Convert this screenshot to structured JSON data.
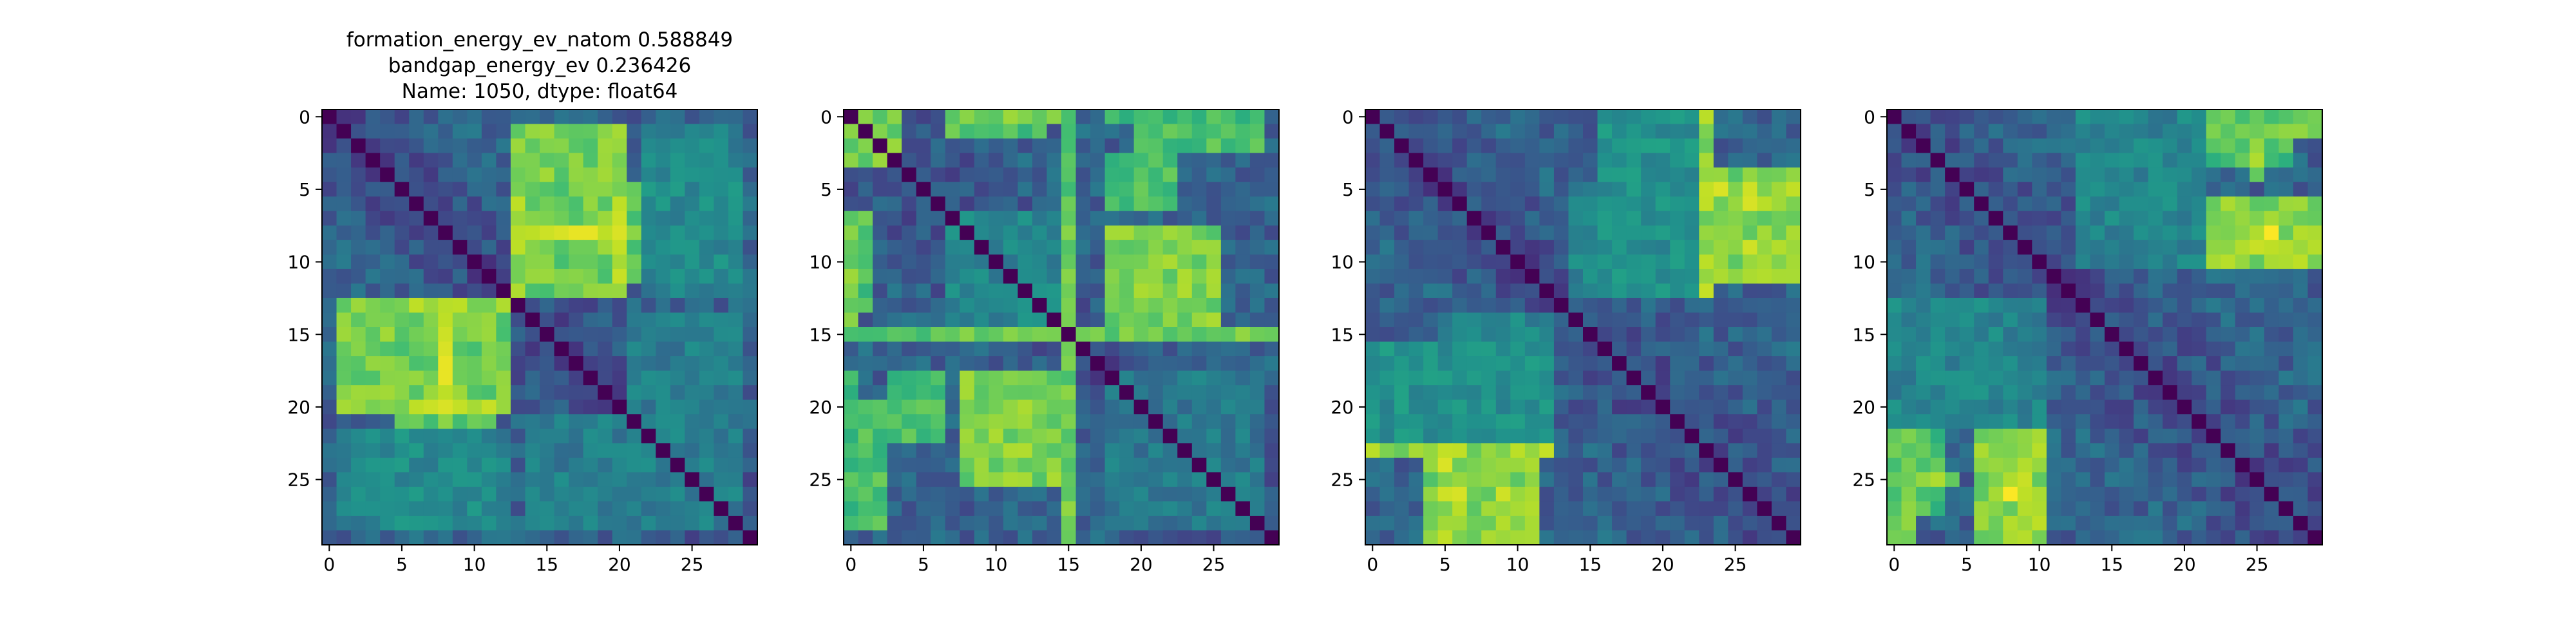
{
  "chart_data": [
    {
      "type": "heatmap",
      "title_lines": [
        "formation_energy_ev_natom    0.588849",
        "bandgap_energy_ev            0.236426",
        "Name: 1050, dtype: float64"
      ],
      "size": 30,
      "colormap": "viridis",
      "value_range": [
        0,
        1
      ],
      "xticks": [
        0,
        5,
        10,
        15,
        20,
        25
      ],
      "yticks": [
        0,
        5,
        10,
        15,
        20,
        25
      ],
      "clusters": [
        {
          "a": [
            13,
            20
          ],
          "b": [
            1,
            12
          ],
          "level": 0.78
        },
        {
          "a": [
            20,
            20
          ],
          "b": [
            1,
            12
          ],
          "level": 0.86
        },
        {
          "a": [
            13,
            13
          ],
          "b": [
            5,
            12
          ],
          "level": 0.84
        },
        {
          "a": [
            5,
            11
          ],
          "b": [
            13,
            21
          ],
          "level": 0.76
        },
        {
          "a": [
            8,
            8
          ],
          "b": [
            13,
            21
          ],
          "level": 0.9
        },
        {
          "a": [
            5,
            11
          ],
          "b": [
            21,
            28
          ],
          "level": 0.48
        },
        {
          "a": [
            14,
            28
          ],
          "b": [
            21,
            28
          ],
          "level": 0.42
        },
        {
          "a": [
            22,
            28
          ],
          "b": [
            1,
            12
          ],
          "level": 0.45
        }
      ]
    },
    {
      "type": "heatmap",
      "title_lines": [],
      "size": 30,
      "colormap": "viridis",
      "value_range": [
        0,
        1
      ],
      "xticks": [
        0,
        5,
        10,
        15,
        20,
        25
      ],
      "yticks": [
        0,
        5,
        10,
        15,
        20,
        25
      ],
      "clusters": [
        {
          "a": [
            0,
            0
          ],
          "b": [
            8,
            14
          ],
          "level": 0.82
        },
        {
          "a": [
            0,
            0
          ],
          "b": [
            18,
            28
          ],
          "level": 0.7
        },
        {
          "a": [
            0,
            3
          ],
          "b": [
            1,
            3
          ],
          "level": 0.78
        },
        {
          "a": [
            7,
            13
          ],
          "b": [
            0,
            1
          ],
          "level": 0.72
        },
        {
          "a": [
            15,
            15
          ],
          "b": [
            0,
            29
          ],
          "level": 0.76
        },
        {
          "a": [
            8,
            13
          ],
          "b": [
            18,
            25
          ],
          "level": 0.76
        },
        {
          "a": [
            18,
            25
          ],
          "b": [
            8,
            14
          ],
          "level": 0.8
        },
        {
          "a": [
            20,
            28
          ],
          "b": [
            0,
            2
          ],
          "level": 0.7
        },
        {
          "a": [
            7,
            13
          ],
          "b": [
            8,
            14
          ],
          "level": 0.45
        },
        {
          "a": [
            18,
            28
          ],
          "b": [
            18,
            28
          ],
          "level": 0.4
        },
        {
          "a": [
            3,
            6
          ],
          "b": [
            18,
            22
          ],
          "level": 0.7
        }
      ]
    },
    {
      "type": "heatmap",
      "title_lines": [],
      "size": 30,
      "colormap": "viridis",
      "value_range": [
        0,
        1
      ],
      "xticks": [
        0,
        5,
        10,
        15,
        20,
        25
      ],
      "yticks": [
        0,
        5,
        10,
        15,
        20,
        25
      ],
      "clusters": [
        {
          "a": [
            23,
            29
          ],
          "b": [
            4,
            11
          ],
          "level": 0.8
        },
        {
          "a": [
            23,
            23
          ],
          "b": [
            0,
            12
          ],
          "level": 0.84
        },
        {
          "a": [
            25,
            29
          ],
          "b": [
            5,
            6
          ],
          "level": 0.88
        },
        {
          "a": [
            5,
            11
          ],
          "b": [
            23,
            29
          ],
          "level": 0.8
        },
        {
          "a": [
            5,
            5
          ],
          "b": [
            23,
            24
          ],
          "level": 0.9
        },
        {
          "a": [
            9,
            11
          ],
          "b": [
            26,
            29
          ],
          "level": 0.86
        },
        {
          "a": [
            16,
            22
          ],
          "b": [
            0,
            12
          ],
          "level": 0.5
        },
        {
          "a": [
            5,
            12
          ],
          "b": [
            14,
            22
          ],
          "level": 0.45
        }
      ]
    },
    {
      "type": "heatmap",
      "title_lines": [],
      "size": 30,
      "colormap": "viridis",
      "value_range": [
        0,
        1
      ],
      "xticks": [
        0,
        5,
        10,
        15,
        20,
        25
      ],
      "yticks": [
        0,
        5,
        10,
        15,
        20,
        25
      ],
      "clusters": [
        {
          "a": [
            22,
            29
          ],
          "b": [
            0,
            1
          ],
          "level": 0.76
        },
        {
          "a": [
            22,
            29
          ],
          "b": [
            6,
            9
          ],
          "level": 0.82
        },
        {
          "a": [
            25,
            25
          ],
          "b": [
            2,
            4
          ],
          "level": 0.8
        },
        {
          "a": [
            7,
            10
          ],
          "b": [
            22,
            29
          ],
          "level": 0.82
        },
        {
          "a": [
            0,
            3
          ],
          "b": [
            22,
            27
          ],
          "level": 0.7
        },
        {
          "a": [
            8,
            9
          ],
          "b": [
            25,
            26
          ],
          "level": 0.92
        },
        {
          "a": [
            13,
            21
          ],
          "b": [
            0,
            9
          ],
          "level": 0.45
        },
        {
          "a": [
            1,
            10
          ],
          "b": [
            13,
            21
          ],
          "level": 0.45
        }
      ]
    }
  ]
}
